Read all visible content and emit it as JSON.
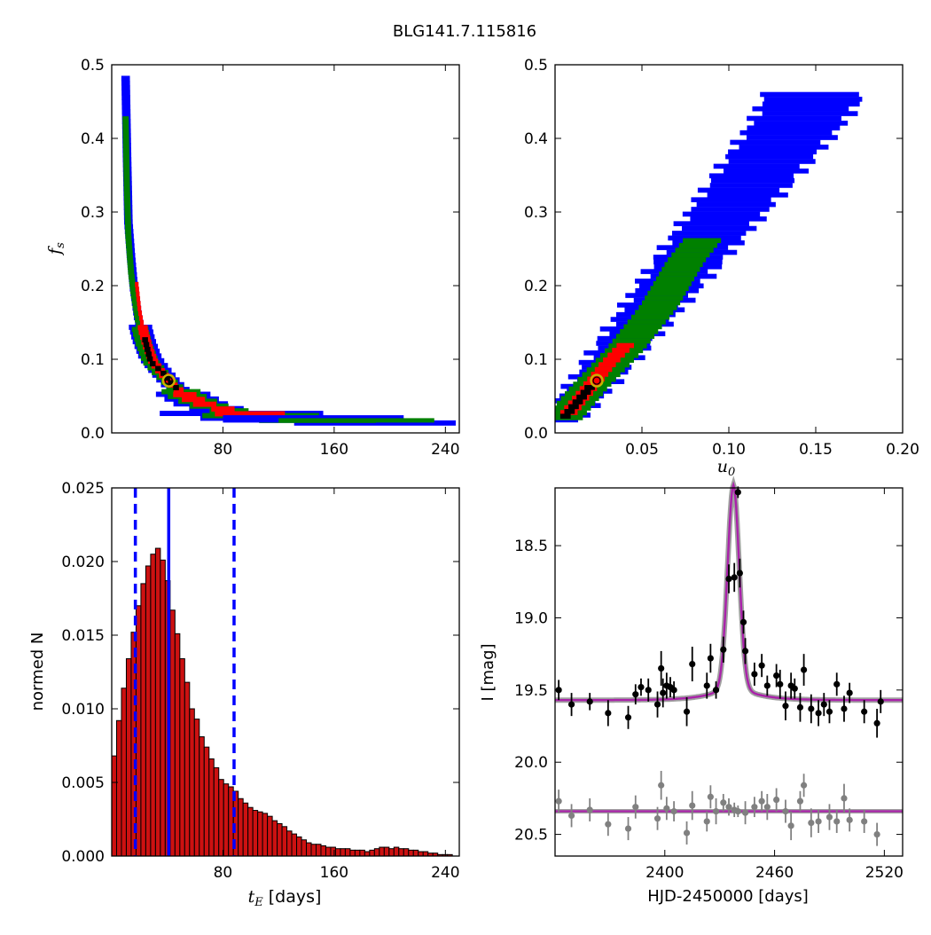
{
  "figure": {
    "title": "BLG141.7.115816",
    "colors": {
      "sigma1": "#ff0000",
      "sigma2": "#008000",
      "sigma3": "#0000ff",
      "best": "#000000",
      "marker": "#c8b400",
      "hist": "#cc1111",
      "model": "#aa22aa",
      "model_grey": "#888888"
    }
  },
  "chart_data": [
    {
      "id": "fs-vs-tE",
      "type": "heatmap",
      "xlabel": "",
      "ylabel": "f",
      "ylabel_sub": "s",
      "xlim": [
        0,
        250
      ],
      "ylim": [
        0.0,
        0.5
      ],
      "xticks": [
        "80",
        "160",
        "240"
      ],
      "xtick_values": [
        80,
        160,
        240
      ],
      "yticks": [
        "0.0",
        "0.1",
        "0.2",
        "0.3",
        "0.4",
        "0.5"
      ],
      "ytick_values": [
        0.0,
        0.1,
        0.2,
        0.3,
        0.4,
        0.5
      ],
      "best_fit": {
        "x": 41,
        "y": 0.071
      },
      "regions": {
        "sigma3": [
          [
            10,
            0.485
          ],
          [
            11,
            0.38
          ],
          [
            12,
            0.29
          ],
          [
            14,
            0.24
          ],
          [
            16,
            0.2
          ],
          [
            19,
            0.16
          ],
          [
            23,
            0.13
          ],
          [
            28,
            0.105
          ],
          [
            34,
            0.09
          ],
          [
            42,
            0.072
          ],
          [
            52,
            0.055
          ],
          [
            65,
            0.042
          ],
          [
            80,
            0.034
          ],
          [
            100,
            0.028
          ],
          [
            130,
            0.022
          ],
          [
            160,
            0.02
          ],
          [
            200,
            0.016
          ],
          [
            246,
            0.014
          ]
        ],
        "sigma2": [
          [
            10,
            0.43
          ],
          [
            11,
            0.33
          ],
          [
            12,
            0.27
          ],
          [
            14,
            0.22
          ],
          [
            16,
            0.19
          ],
          [
            19,
            0.155
          ],
          [
            23,
            0.125
          ],
          [
            28,
            0.1
          ],
          [
            35,
            0.085
          ],
          [
            44,
            0.068
          ],
          [
            55,
            0.052
          ],
          [
            70,
            0.04
          ],
          [
            90,
            0.031
          ],
          [
            120,
            0.024
          ],
          [
            160,
            0.019
          ],
          [
            200,
            0.016
          ],
          [
            232,
            0.015
          ]
        ],
        "sigma1": [
          [
            18,
            0.205
          ],
          [
            20,
            0.17
          ],
          [
            23,
            0.14
          ],
          [
            26,
            0.12
          ],
          [
            30,
            0.1
          ],
          [
            36,
            0.085
          ],
          [
            44,
            0.068
          ],
          [
            55,
            0.052
          ],
          [
            70,
            0.04
          ],
          [
            90,
            0.032
          ],
          [
            105,
            0.028
          ],
          [
            125,
            0.025
          ]
        ],
        "best": [
          [
            24,
            0.13
          ],
          [
            28,
            0.1
          ],
          [
            31,
            0.095
          ],
          [
            37,
            0.085
          ],
          [
            44,
            0.068
          ],
          [
            50,
            0.06
          ]
        ]
      }
    },
    {
      "id": "fs-vs-u0",
      "type": "heatmap",
      "xlabel": "u",
      "xlabel_sub": "0",
      "ylabel": "",
      "xlim": [
        0.0,
        0.2
      ],
      "ylim": [
        0.0,
        0.5
      ],
      "xticks": [
        "0.05",
        "0.10",
        "0.15",
        "0.20"
      ],
      "xtick_values": [
        0.05,
        0.1,
        0.15,
        0.2
      ],
      "yticks": [
        "0.0",
        "0.1",
        "0.2",
        "0.3",
        "0.4",
        "0.5"
      ],
      "ytick_values": [
        0.0,
        0.1,
        0.2,
        0.3,
        0.4,
        0.5
      ],
      "best_fit": {
        "x": 0.024,
        "y": 0.071
      },
      "regions": {
        "sigma3": {
          "band": [
            [
              0.003,
              0.015
            ],
            [
              0.02,
              0.06
            ],
            [
              0.04,
              0.12
            ],
            [
              0.06,
              0.18
            ],
            [
              0.08,
              0.24
            ],
            [
              0.1,
              0.3
            ],
            [
              0.12,
              0.36
            ],
            [
              0.14,
              0.42
            ],
            [
              0.15,
              0.46
            ]
          ],
          "half": 0.022
        },
        "sigma2": {
          "band": [
            [
              0.005,
              0.018
            ],
            [
              0.02,
              0.06
            ],
            [
              0.04,
              0.11
            ],
            [
              0.06,
              0.17
            ],
            [
              0.075,
              0.23
            ],
            [
              0.085,
              0.26
            ]
          ],
          "half": 0.011
        },
        "sigma1": {
          "band": [
            [
              0.008,
              0.025
            ],
            [
              0.02,
              0.06
            ],
            [
              0.03,
              0.09
            ],
            [
              0.042,
              0.12
            ]
          ],
          "half": 0.005
        },
        "best": {
          "band": [
            [
              0.006,
              0.02
            ],
            [
              0.015,
              0.045
            ],
            [
              0.022,
              0.065
            ]
          ],
          "half": 0.003
        }
      }
    },
    {
      "id": "tE-histogram",
      "type": "bar",
      "xlabel": "t",
      "xlabel_sub": "E",
      "xlabel_unit": " [days]",
      "ylabel": "normed N",
      "xlim": [
        0,
        250
      ],
      "ylim": [
        0.0,
        0.025
      ],
      "xticks": [
        "80",
        "160",
        "240"
      ],
      "xtick_values": [
        80,
        160,
        240
      ],
      "yticks": [
        "0.000",
        "0.005",
        "0.010",
        "0.015",
        "0.020",
        "0.025"
      ],
      "ytick_values": [
        0.0,
        0.005,
        0.01,
        0.015,
        0.02,
        0.025
      ],
      "bin_width": 3.5,
      "values": [
        0.0068,
        0.0092,
        0.0114,
        0.0134,
        0.0152,
        0.017,
        0.0185,
        0.0197,
        0.0205,
        0.0209,
        0.0201,
        0.0187,
        0.0167,
        0.0151,
        0.0134,
        0.0118,
        0.01,
        0.0093,
        0.0081,
        0.0074,
        0.0066,
        0.006,
        0.0052,
        0.0049,
        0.0047,
        0.0044,
        0.0039,
        0.0036,
        0.0033,
        0.0031,
        0.003,
        0.0029,
        0.0027,
        0.0024,
        0.0022,
        0.002,
        0.0017,
        0.0015,
        0.0013,
        0.0011,
        0.0009,
        0.0008,
        0.0008,
        0.0007,
        0.0006,
        0.0006,
        0.0005,
        0.0005,
        0.0005,
        0.0004,
        0.0004,
        0.0004,
        0.0003,
        0.0004,
        0.0005,
        0.0006,
        0.0006,
        0.0005,
        0.0006,
        0.0005,
        0.0005,
        0.0004,
        0.0004,
        0.0003,
        0.0003,
        0.0002,
        0.0002,
        0.0001,
        0.0001,
        0.0001
      ],
      "median": 41,
      "interval": [
        17,
        88
      ]
    },
    {
      "id": "lightcurve",
      "type": "scatter",
      "xlabel": "HJD-2450000 [days]",
      "ylabel": "I [mag]",
      "xlim": [
        2340,
        2530
      ],
      "ylim": [
        20.65,
        18.1
      ],
      "xticks": [
        "2400",
        "2460",
        "2520"
      ],
      "xtick_values": [
        2400,
        2460,
        2520
      ],
      "yticks": [
        "18.5",
        "19.0",
        "19.5",
        "20.0",
        "20.5"
      ],
      "ytick_values": [
        18.5,
        19.0,
        19.5,
        20.0,
        20.5
      ],
      "model": {
        "t0": 2437.5,
        "base": 19.57,
        "peak": 18.2,
        "width": 3.2,
        "wings": 12
      },
      "baseline2": 20.34,
      "series": [
        {
          "x": [
            2342,
            2349,
            2359,
            2369,
            2380,
            2384,
            2387,
            2391,
            2396,
            2398,
            2399,
            2401,
            2403,
            2405,
            2412,
            2415,
            2423,
            2425,
            2428,
            2432,
            2435,
            2438,
            2440,
            2441,
            2443,
            2444,
            2449,
            2453,
            2456,
            2461,
            2463,
            2466,
            2469,
            2471,
            2474,
            2476,
            2480,
            2484,
            2487,
            2490,
            2494,
            2498,
            2501,
            2509,
            2516,
            2518
          ],
          "y": [
            19.5,
            19.6,
            19.58,
            19.66,
            19.69,
            19.53,
            19.48,
            19.5,
            19.6,
            19.35,
            19.52,
            19.47,
            19.48,
            19.5,
            19.65,
            19.32,
            19.47,
            19.28,
            19.5,
            19.22,
            18.73,
            18.72,
            18.13,
            18.69,
            19.03,
            19.23,
            19.39,
            19.33,
            19.47,
            19.4,
            19.46,
            19.61,
            19.47,
            19.49,
            19.62,
            19.36,
            19.63,
            19.66,
            19.6,
            19.65,
            19.46,
            19.63,
            19.52,
            19.65,
            19.73,
            19.58
          ],
          "err": [
            0.07,
            0.08,
            0.06,
            0.09,
            0.08,
            0.07,
            0.06,
            0.08,
            0.09,
            0.12,
            0.1,
            0.09,
            0.07,
            0.06,
            0.1,
            0.12,
            0.09,
            0.1,
            0.06,
            0.09,
            0.1,
            0.1,
            0.04,
            0.1,
            0.08,
            0.09,
            0.08,
            0.08,
            0.07,
            0.08,
            0.1,
            0.1,
            0.09,
            0.07,
            0.1,
            0.11,
            0.1,
            0.09,
            0.08,
            0.08,
            0.08,
            0.09,
            0.07,
            0.08,
            0.1,
            0.08
          ]
        },
        {
          "x": [
            2342,
            2349,
            2359,
            2369,
            2380,
            2384,
            2396,
            2398,
            2401,
            2405,
            2412,
            2415,
            2423,
            2425,
            2428,
            2432,
            2435,
            2438,
            2440,
            2444,
            2449,
            2453,
            2456,
            2461,
            2466,
            2469,
            2474,
            2476,
            2480,
            2484,
            2490,
            2494,
            2498,
            2501,
            2509,
            2516
          ],
          "y": [
            20.27,
            20.37,
            20.33,
            20.43,
            20.46,
            20.31,
            20.39,
            20.16,
            20.32,
            20.34,
            20.49,
            20.3,
            20.41,
            20.24,
            20.34,
            20.28,
            20.31,
            20.33,
            20.34,
            20.35,
            20.31,
            20.27,
            20.31,
            20.26,
            20.34,
            20.44,
            20.27,
            20.16,
            20.42,
            20.41,
            20.38,
            20.41,
            20.25,
            20.4,
            20.41,
            20.5
          ],
          "err": [
            0.08,
            0.08,
            0.08,
            0.08,
            0.08,
            0.08,
            0.08,
            0.1,
            0.08,
            0.07,
            0.08,
            0.1,
            0.07,
            0.08,
            0.09,
            0.06,
            0.06,
            0.05,
            0.04,
            0.08,
            0.07,
            0.07,
            0.09,
            0.08,
            0.08,
            0.1,
            0.07,
            0.08,
            0.1,
            0.08,
            0.09,
            0.08,
            0.1,
            0.08,
            0.08,
            0.08
          ]
        }
      ]
    }
  ]
}
